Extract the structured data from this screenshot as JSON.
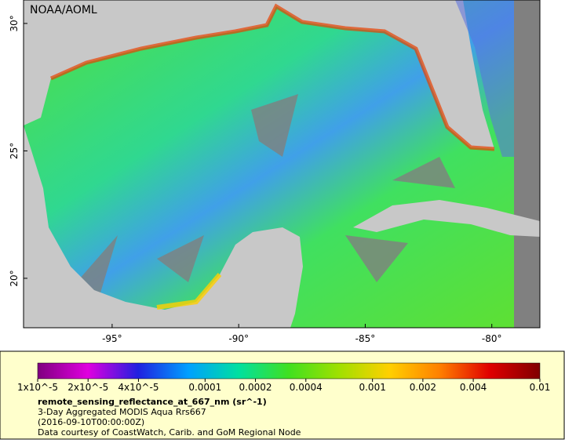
{
  "map": {
    "type": "map",
    "watermark": "NOAA/AOML",
    "xlim": [
      -98.5,
      -78.1
    ],
    "ylim": [
      18.06,
      30.92
    ],
    "xticks": [
      {
        "value": -95,
        "label": "-95°"
      },
      {
        "value": -90,
        "label": "-90°"
      },
      {
        "value": -85,
        "label": "-85°"
      },
      {
        "value": -80,
        "label": "-80°"
      }
    ],
    "yticks": [
      {
        "value": 30,
        "label": "30°"
      },
      {
        "value": 25,
        "label": "25°"
      },
      {
        "value": 20,
        "label": "20°"
      }
    ],
    "colorbar": {
      "scale": "log",
      "lim": [
        1e-05,
        0.01
      ],
      "colors": [
        "#7f007f",
        "#e000e0",
        "#2020e0",
        "#00a0ff",
        "#00e0a0",
        "#40e020",
        "#a0e000",
        "#ffd000",
        "#ff8000",
        "#e00000",
        "#800000"
      ],
      "ticks": [
        {
          "value": 1e-05,
          "label": "1x10^-5"
        },
        {
          "value": 2e-05,
          "label": "2x10^-5"
        },
        {
          "value": 4e-05,
          "label": "4x10^-5"
        },
        {
          "value": 0.0001,
          "label": "0.0001"
        },
        {
          "value": 0.0002,
          "label": "0.0002"
        },
        {
          "value": 0.0004,
          "label": "0.0004"
        },
        {
          "value": 0.001,
          "label": "0.001"
        },
        {
          "value": 0.002,
          "label": "0.002"
        },
        {
          "value": 0.004,
          "label": "0.004"
        },
        {
          "value": 0.01,
          "label": "0.01"
        }
      ]
    },
    "variable": "remote_sensing_reflectance_at_667_nm (sr^-1)",
    "dataset": "3-Day Aggregated MODIS Aqua Rrs667",
    "time": "(2016-09-10T00:00:00Z)",
    "credit": "Data courtesy of CoastWatch, Carib. and GoM Regional Node"
  }
}
